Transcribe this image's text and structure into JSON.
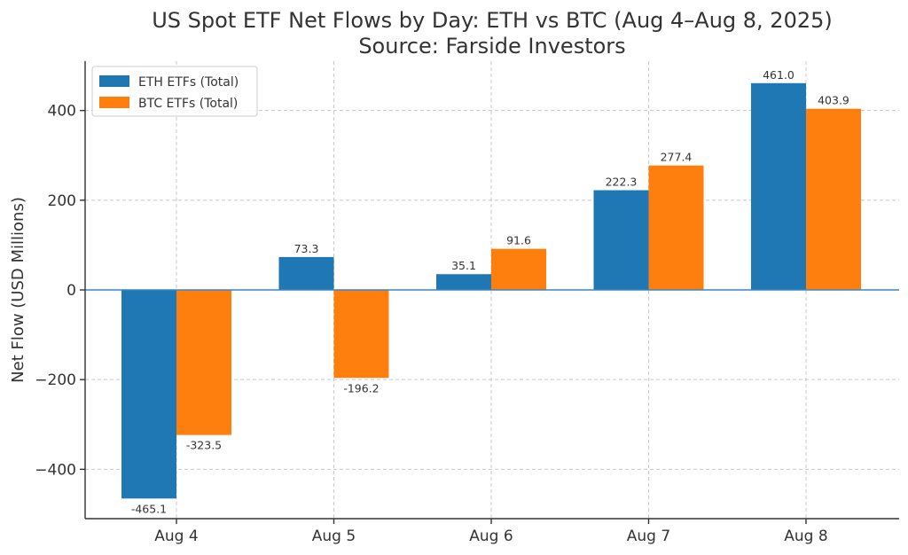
{
  "chart_data": {
    "type": "bar",
    "title": "US Spot ETF Net Flows by Day: ETH vs BTC (Aug 4–Aug 8, 2025)",
    "subtitle": "Source: Farside Investors",
    "xlabel": "",
    "ylabel": "Net Flow (USD Millions)",
    "categories": [
      "Aug 4",
      "Aug 5",
      "Aug 6",
      "Aug 7",
      "Aug 8"
    ],
    "series": [
      {
        "name": "ETH ETFs (Total)",
        "color": "#1f77b4",
        "values": [
          -465.1,
          73.3,
          35.1,
          222.3,
          461.0
        ],
        "labels": [
          "-465.1",
          "73.3",
          "35.1",
          "222.3",
          "461.0"
        ]
      },
      {
        "name": "BTC ETFs (Total)",
        "color": "#ff7f0e",
        "values": [
          -323.5,
          -196.2,
          91.6,
          277.4,
          403.9
        ],
        "labels": [
          "-323.5",
          "-196.2",
          "91.6",
          "277.4",
          "403.9"
        ]
      }
    ],
    "ylim": [
      -510,
      510
    ],
    "yticks": [
      -400,
      -200,
      0,
      200,
      400
    ],
    "ytick_labels": [
      "−400",
      "−200",
      "0",
      "200",
      "400"
    ],
    "grid": true,
    "legend_position": "top-left"
  }
}
